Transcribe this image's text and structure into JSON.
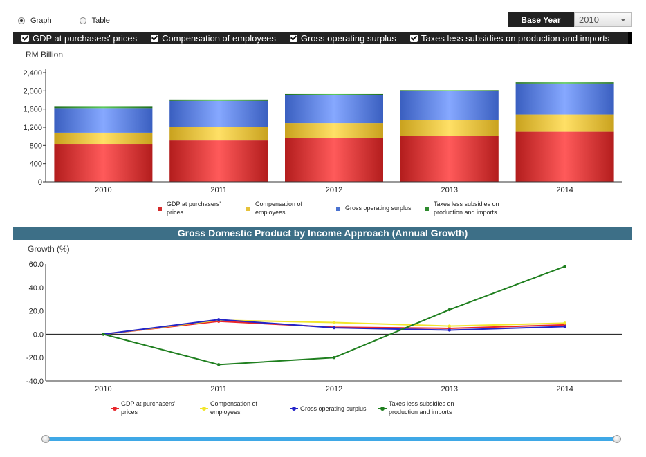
{
  "view_toggle": {
    "graph_label": "Graph",
    "table_label": "Table",
    "selected": "Graph"
  },
  "base_year": {
    "label": "Base Year",
    "value": "2010"
  },
  "series_toggles": [
    "GDP at purchasers' prices",
    "Compensation of employees",
    "Gross operating surplus",
    "Taxes less subsidies on production and imports"
  ],
  "section_title": "Gross Domestic Product by Income Approach (Annual Growth)",
  "colors": {
    "gdp": "#d42b2b",
    "comp": "#e6c23a",
    "gos": "#4a72d0",
    "tax": "#2e8b2e",
    "line_gdp": "#e8262b",
    "line_comp": "#f2e62a",
    "line_gos": "#2424c8",
    "line_tax": "#1f7f1f"
  },
  "chart_data": [
    {
      "type": "bar",
      "stacked": true,
      "ylabel": "RM Billion",
      "ylim": [
        0,
        2400
      ],
      "yticks": [
        "2,400",
        "2,000",
        "1,600",
        "1,200",
        "800",
        "400",
        "0"
      ],
      "categories": [
        "2010",
        "2011",
        "2012",
        "2013",
        "2014"
      ],
      "series": [
        {
          "name": "GDP at purchasers' prices",
          "legend_lines": [
            "GDP at purchasers'",
            "prices"
          ],
          "values": [
            820,
            910,
            970,
            1010,
            1100
          ]
        },
        {
          "name": "Compensation of employees",
          "legend_lines": [
            "Compensation of",
            "employees"
          ],
          "values": [
            260,
            290,
            320,
            350,
            380
          ]
        },
        {
          "name": "Gross operating surplus",
          "legend_lines": [
            "Gross operating surplus"
          ],
          "values": [
            540,
            580,
            620,
            640,
            680
          ]
        },
        {
          "name": "Taxes less subsidies on production and imports",
          "legend_lines": [
            "Taxes less subsidies on",
            "production and imports"
          ],
          "values": [
            30,
            30,
            20,
            15,
            25
          ]
        }
      ]
    },
    {
      "type": "line",
      "ylabel": "Growth (%)",
      "ylim": [
        -40,
        60
      ],
      "yticks": [
        "60.0",
        "40.0",
        "20.0",
        "0.0",
        "-20.0",
        "-40.0"
      ],
      "categories": [
        "2010",
        "2011",
        "2012",
        "2013",
        "2014"
      ],
      "series": [
        {
          "name": "GDP at purchasers' prices",
          "legend_lines": [
            "GDP at purchasers'",
            "prices"
          ],
          "values": [
            0,
            11,
            6,
            5,
            8
          ]
        },
        {
          "name": "Compensation of employees",
          "legend_lines": [
            "Compensation of",
            "employees"
          ],
          "values": [
            0,
            12,
            10,
            7,
            9.5
          ]
        },
        {
          "name": "Gross operating surplus",
          "legend_lines": [
            "Gross operating surplus"
          ],
          "values": [
            0,
            12.5,
            5.5,
            3.5,
            6.5
          ]
        },
        {
          "name": "Taxes less subsidies on production and imports",
          "legend_lines": [
            "Taxes less subsidies on",
            "production and imports"
          ],
          "values": [
            0,
            -26,
            -20,
            21,
            58
          ]
        }
      ]
    }
  ]
}
